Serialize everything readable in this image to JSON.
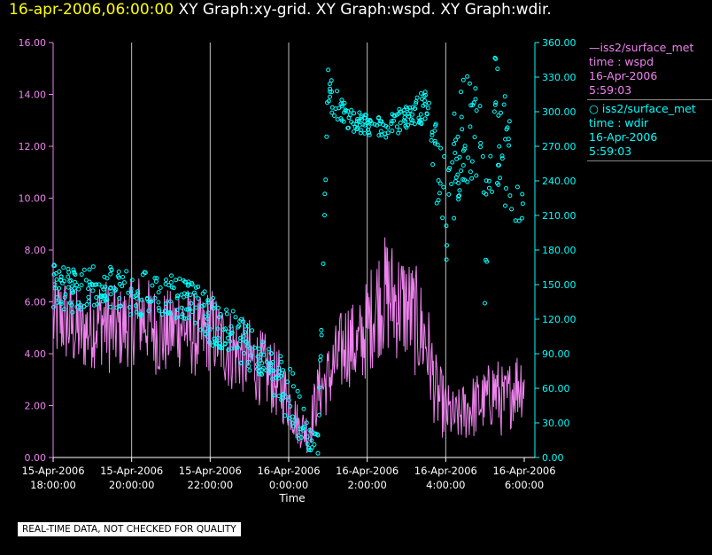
{
  "header": {
    "timestamp": "16-apr-2006,06:00:00",
    "titles": "XY Graph:xy-grid.  XY Graph:wspd.  XY Graph:wdir."
  },
  "colors": {
    "background": "#000000",
    "wspd": "#ee82ee",
    "wdir": "#00ffff",
    "grid": "#c0c0c0",
    "header_time": "#ffff00"
  },
  "legend": {
    "wspd": {
      "line1": "—iss2/surface_met",
      "line2": "time : wspd",
      "line3": "16-Apr-2006",
      "line4": "5:59:03"
    },
    "wdir": {
      "line1": "iss2/surface_met",
      "line2": "time : wdir",
      "line3": "16-Apr-2006",
      "line4": "5:59:03"
    }
  },
  "footer": {
    "note": "REAL-TIME DATA, NOT CHECKED FOR QUALITY"
  },
  "chart_data": {
    "type": "line+scatter",
    "xlabel": "Time",
    "x_ticks": [
      {
        "date": "15-Apr-2006",
        "time": "18:00:00"
      },
      {
        "date": "15-Apr-2006",
        "time": "20:00:00"
      },
      {
        "date": "15-Apr-2006",
        "time": "22:00:00"
      },
      {
        "date": "16-Apr-2006",
        "time": "0:00:00"
      },
      {
        "date": "16-Apr-2006",
        "time": "2:00:00"
      },
      {
        "date": "16-Apr-2006",
        "time": "4:00:00"
      },
      {
        "date": "16-Apr-2006",
        "time": "6:00:00"
      }
    ],
    "xlim": [
      "15-Apr-2006 18:00",
      "16-Apr-2006 06:00"
    ],
    "y_left": {
      "lim": [
        0,
        16
      ],
      "ticks": [
        "0.00",
        "2.00",
        "4.00",
        "6.00",
        "8.00",
        "10.00",
        "12.00",
        "14.00",
        "16.00"
      ]
    },
    "y_right": {
      "lim": [
        0,
        360
      ],
      "ticks": [
        "0.00",
        "30.00",
        "60.00",
        "90.00",
        "120.00",
        "150.00",
        "180.00",
        "210.00",
        "240.00",
        "270.00",
        "300.00",
        "330.00",
        "360.00"
      ]
    },
    "vertical_grid": true,
    "series": [
      {
        "name": "wspd",
        "axis": "left",
        "style": "line",
        "x_hours": [
          0,
          0.25,
          0.5,
          0.75,
          1,
          1.25,
          1.5,
          1.75,
          2,
          2.25,
          2.5,
          2.75,
          3,
          3.25,
          3.5,
          3.75,
          4,
          4.25,
          4.5,
          4.75,
          5,
          5.25,
          5.5,
          5.75,
          6,
          6.25,
          6.5,
          6.75,
          7,
          7.25,
          7.5,
          7.75,
          8,
          8.25,
          8.5,
          8.75,
          9,
          9.25,
          9.5,
          9.75,
          10,
          10.25,
          10.5,
          10.75,
          11,
          11.25,
          11.5,
          11.75,
          12
        ],
        "y": [
          5.2,
          5.4,
          5.0,
          4.8,
          5.1,
          5.3,
          4.9,
          5.0,
          5.2,
          5.5,
          5.1,
          4.7,
          4.9,
          5.2,
          4.8,
          4.6,
          5.0,
          4.5,
          4.2,
          4.0,
          3.8,
          3.5,
          3.2,
          2.8,
          2.2,
          1.2,
          1.0,
          2.5,
          3.0,
          3.8,
          4.5,
          4.2,
          5.0,
          6.0,
          6.3,
          6.0,
          5.8,
          5.2,
          4.5,
          2.5,
          1.8,
          1.5,
          1.8,
          2.0,
          2.2,
          2.6,
          2.0,
          2.8,
          3.0
        ],
        "spread": [
          1.6,
          1.8,
          1.7,
          1.6,
          1.7,
          1.8,
          1.8,
          1.6,
          1.7,
          1.8,
          1.7,
          1.8,
          1.6,
          1.8,
          1.7,
          1.6,
          1.7,
          1.6,
          1.7,
          1.5,
          1.6,
          1.5,
          1.5,
          1.4,
          1.2,
          0.8,
          0.9,
          1.2,
          1.4,
          1.6,
          1.8,
          1.6,
          2.0,
          2.2,
          2.4,
          2.3,
          2.2,
          2.2,
          2.0,
          1.5,
          1.2,
          1.0,
          1.2,
          1.3,
          1.2,
          1.5,
          1.4,
          1.4,
          1.5
        ]
      },
      {
        "name": "wdir",
        "axis": "right",
        "style": "scatter",
        "x_hours": [
          0,
          0.5,
          1,
          1.5,
          2,
          2.5,
          3,
          3.5,
          4,
          4.5,
          5,
          5.5,
          6,
          6.25,
          6.5,
          6.75,
          7,
          7.25,
          7.5,
          7.75,
          8,
          8.5,
          9,
          9.5,
          10,
          10.25,
          10.5,
          10.75,
          11,
          11.25,
          11.5,
          12
        ],
        "y": [
          150,
          145,
          148,
          150,
          142,
          140,
          140,
          135,
          120,
          110,
          95,
          80,
          55,
          40,
          15,
          10,
          320,
          305,
          295,
          290,
          290,
          285,
          295,
          305,
          210,
          260,
          290,
          280,
          200,
          300,
          270,
          190
        ],
        "spread": [
          20,
          20,
          18,
          20,
          20,
          20,
          18,
          18,
          22,
          20,
          20,
          20,
          25,
          25,
          12,
          10,
          18,
          12,
          10,
          10,
          10,
          10,
          12,
          15,
          50,
          45,
          50,
          50,
          80,
          60,
          50,
          30
        ]
      }
    ]
  }
}
